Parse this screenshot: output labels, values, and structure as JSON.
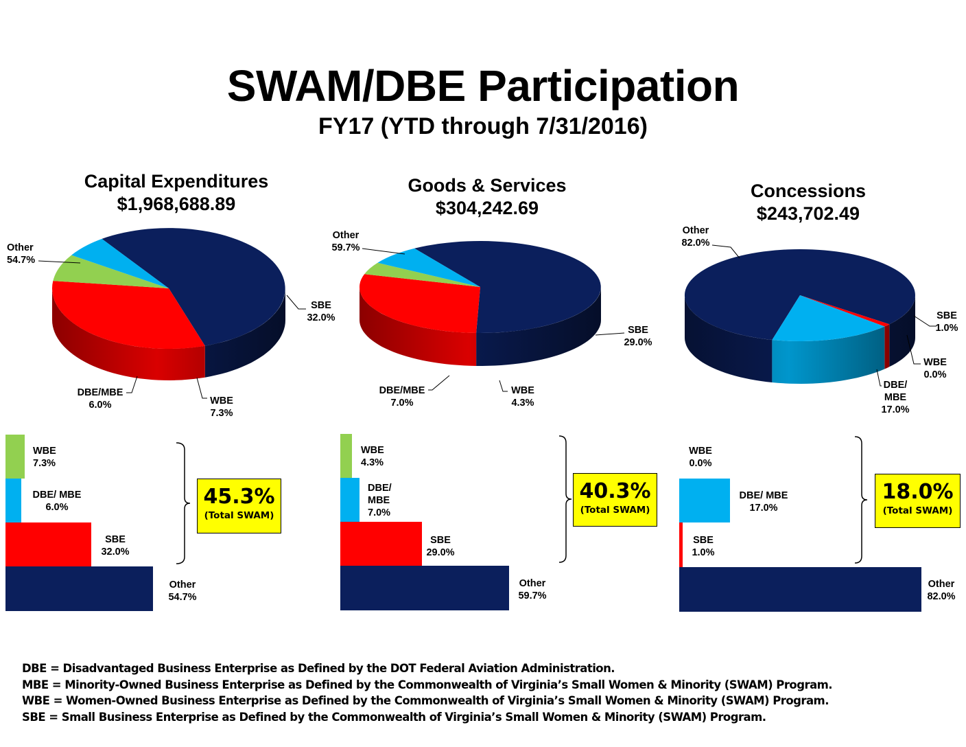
{
  "title": "SWAM/DBE Participation",
  "subtitle": "FY17 (YTD through 7/31/2016)",
  "colors": {
    "Other": "#0b1f5c",
    "SBE": "#ff0000",
    "WBE": "#92d050",
    "DBE/MBE": "#00b0f0"
  },
  "chart_data": [
    {
      "type": "pie",
      "title": "Capital Expenditures",
      "amount": "$1,968,688.89",
      "slices": [
        {
          "name": "Other",
          "value": 54.7,
          "label": "54.7%"
        },
        {
          "name": "SBE",
          "value": 32.0,
          "label": "32.0%"
        },
        {
          "name": "WBE",
          "value": 7.3,
          "label": "7.3%"
        },
        {
          "name": "DBE/MBE",
          "value": 6.0,
          "label": "6.0%"
        }
      ],
      "pie_labels": {
        "other": "Other",
        "sbe": "SBE",
        "wbe": "WBE",
        "dbe": "DBE/MBE"
      },
      "bars": [
        {
          "name": "WBE",
          "label": "WBE",
          "value": 7.3,
          "pct": "7.3%"
        },
        {
          "name": "DBE/MBE",
          "label": "DBE/ MBE",
          "value": 6.0,
          "pct": "6.0%"
        },
        {
          "name": "SBE",
          "label": "SBE",
          "value": 32.0,
          "pct": "32.0%"
        },
        {
          "name": "Other",
          "label": "Other",
          "value": 54.7,
          "pct": "54.7%"
        }
      ],
      "total_swam": {
        "pct": "45.3%",
        "label": "(Total SWAM)"
      }
    },
    {
      "type": "pie",
      "title": "Goods & Services",
      "amount": "$304,242.69",
      "slices": [
        {
          "name": "Other",
          "value": 59.7,
          "label": "59.7%"
        },
        {
          "name": "SBE",
          "value": 29.0,
          "label": "29.0%"
        },
        {
          "name": "WBE",
          "value": 4.3,
          "label": "4.3%"
        },
        {
          "name": "DBE/MBE",
          "value": 7.0,
          "label": "7.0%"
        }
      ],
      "pie_labels": {
        "other": "Other",
        "sbe": "SBE",
        "wbe": "WBE",
        "dbe": "DBE/MBE"
      },
      "bars": [
        {
          "name": "WBE",
          "label": "WBE",
          "value": 4.3,
          "pct": "4.3%"
        },
        {
          "name": "DBE/MBE",
          "label": "DBE/ MBE",
          "value": 7.0,
          "pct": "7.0%"
        },
        {
          "name": "SBE",
          "label": "SBE",
          "value": 29.0,
          "pct": "29.0%"
        },
        {
          "name": "Other",
          "label": "Other",
          "value": 59.7,
          "pct": "59.7%"
        }
      ],
      "total_swam": {
        "pct": "40.3%",
        "label": "(Total SWAM)"
      }
    },
    {
      "type": "pie",
      "title": "Concessions",
      "amount": "$243,702.49",
      "slices": [
        {
          "name": "Other",
          "value": 82.0,
          "label": "82.0%"
        },
        {
          "name": "SBE",
          "value": 1.0,
          "label": "1.0%"
        },
        {
          "name": "WBE",
          "value": 0.0,
          "label": "0.0%"
        },
        {
          "name": "DBE/MBE",
          "value": 17.0,
          "label": "17.0%"
        }
      ],
      "pie_labels": {
        "other": "Other",
        "sbe": "SBE",
        "wbe": "WBE",
        "dbe1": "DBE/",
        "dbe2": "MBE"
      },
      "bars": [
        {
          "name": "WBE",
          "label": "WBE",
          "value": 0.0,
          "pct": "0.0%"
        },
        {
          "name": "DBE/MBE",
          "label": "DBE/ MBE",
          "value": 17.0,
          "pct": "17.0%"
        },
        {
          "name": "SBE",
          "label": "SBE",
          "value": 1.0,
          "pct": "1.0%"
        },
        {
          "name": "Other",
          "label": "Other",
          "value": 82.0,
          "pct": "82.0%"
        }
      ],
      "total_swam": {
        "pct": "18.0%",
        "label": "(Total SWAM)"
      }
    }
  ],
  "footnotes": [
    "DBE = Disadvantaged Business Enterprise as Defined by the DOT Federal Aviation Administration.",
    "MBE = Minority-Owned Business Enterprise as Defined by the Commonwealth of Virginia’s Small Women & Minority (SWAM) Program.",
    "WBE = Women-Owned Business Enterprise as Defined by the Commonwealth of Virginia’s Small Women & Minority (SWAM) Program.",
    "SBE = Small Business Enterprise as Defined by the Commonwealth of Virginia’s Small Women & Minority (SWAM) Program."
  ]
}
